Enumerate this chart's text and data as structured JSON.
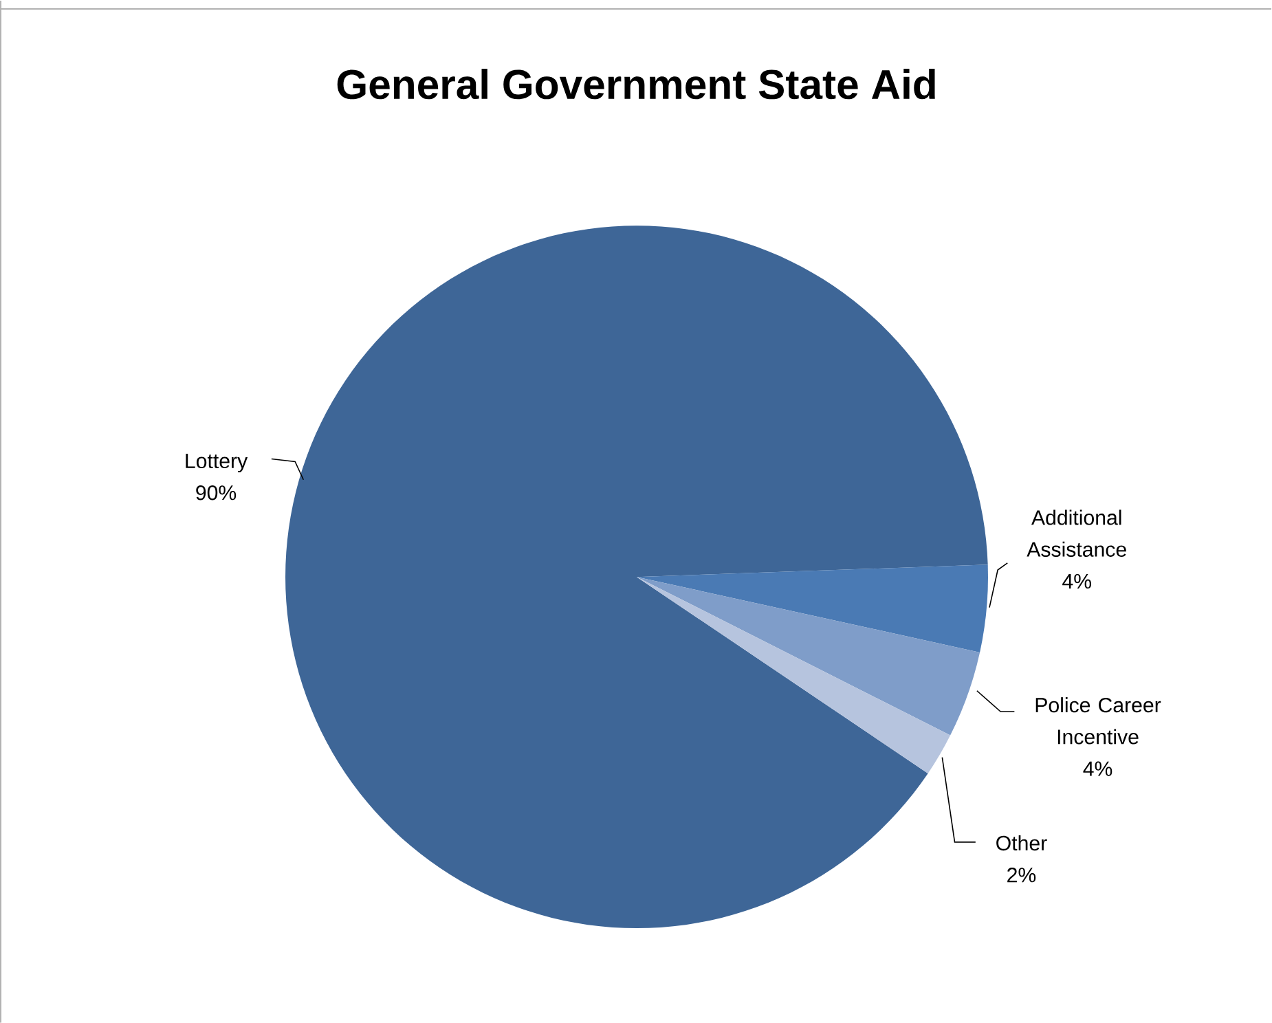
{
  "chart_data": {
    "type": "pie",
    "title": "General Government State Aid",
    "categories": [
      "Lottery",
      "Additional Assistance",
      "Police Career Incentive",
      "Other"
    ],
    "values": [
      90,
      4,
      4,
      2
    ],
    "value_labels": [
      "90%",
      "4%",
      "4%",
      "2%"
    ],
    "colors": [
      "#3e6697",
      "#4a7ab4",
      "#7f9dc9",
      "#b6c4de"
    ]
  }
}
